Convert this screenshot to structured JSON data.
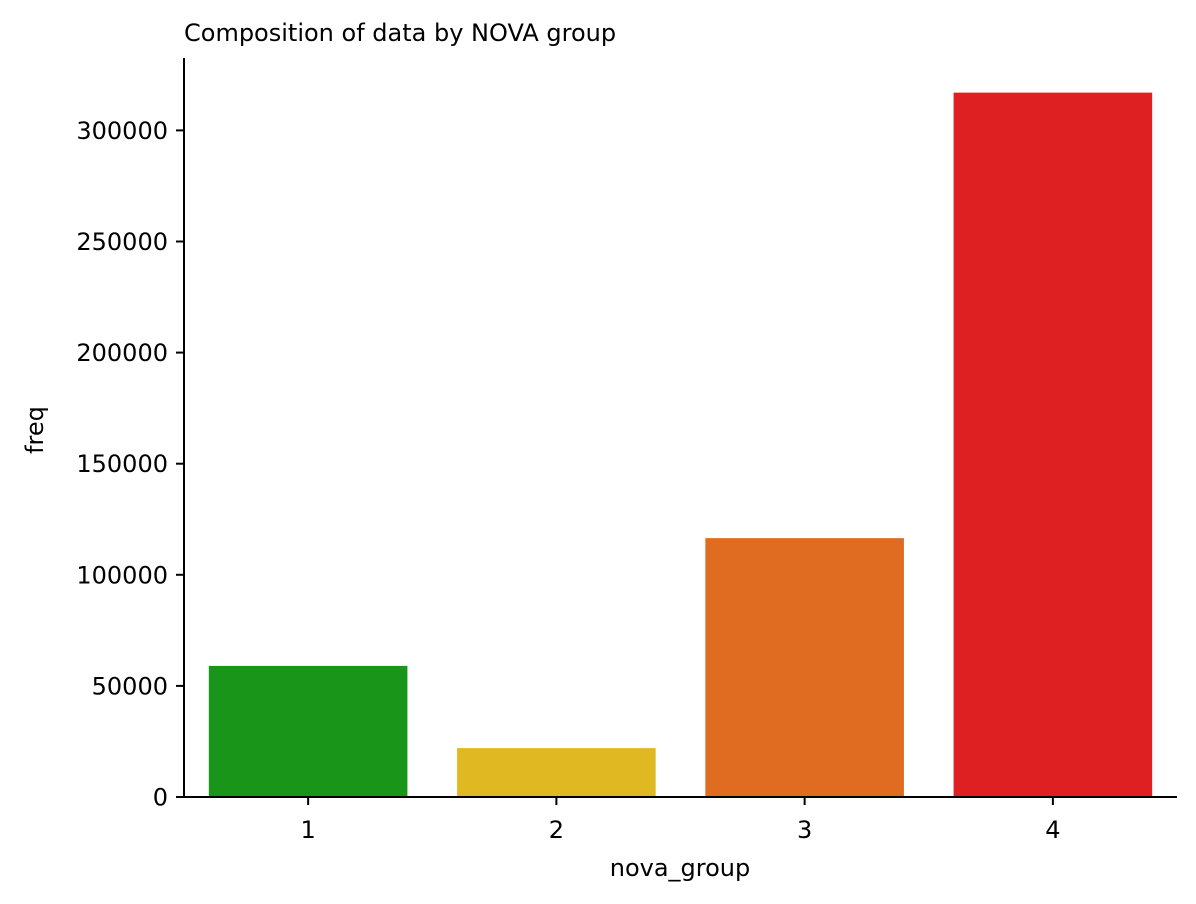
{
  "chart_data": {
    "type": "bar",
    "title": "Composition of data by NOVA group",
    "xlabel": "nova_group",
    "ylabel": "freq",
    "categories": [
      "1",
      "2",
      "3",
      "4"
    ],
    "values": [
      59000,
      22000,
      116500,
      317000
    ],
    "colors": [
      "#19961a",
      "#e0b822",
      "#df6c20",
      "#de2023"
    ],
    "ylim": [
      0,
      333000
    ],
    "yticks": [
      0,
      50000,
      100000,
      150000,
      200000,
      250000,
      300000
    ],
    "ytick_labels": [
      "0",
      "50000",
      "100000",
      "150000",
      "200000",
      "250000",
      "300000"
    ],
    "grid": false,
    "legend": "none"
  }
}
